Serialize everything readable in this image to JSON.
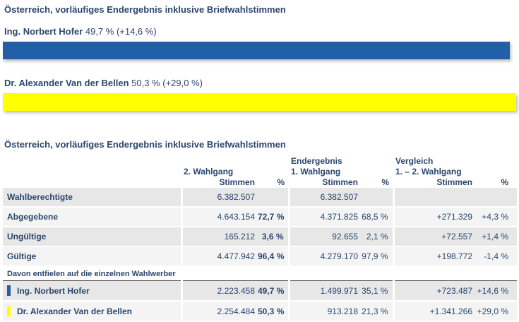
{
  "page": {
    "background": "#ffffff",
    "text_color": "#2d466e"
  },
  "chart": {
    "title": "Österreich, vorläufiges Endergebnis inklusive Briefwahlstimmen",
    "max_percent": 50.3,
    "bars": [
      {
        "name": "Ing. Norbert Hofer",
        "value_label": "49,7 % (+14,6 %)",
        "percent": 49.7,
        "color": "#2160a8"
      },
      {
        "name": "Dr. Alexander Van der Bellen",
        "value_label": "50,3 % (+29,0 %)",
        "percent": 50.3,
        "color": "#ffff00"
      }
    ]
  },
  "table": {
    "title": "Österreich, vorläufiges Endergebnis inklusive Briefwahlstimmen",
    "header": {
      "group1_line2": "2. Wahlgang",
      "group2_line1": "Endergebnis",
      "group2_line2": "1. Wahlgang",
      "group3_line1": "Vergleich",
      "group3_line2": "1. – 2. Wahlgang",
      "stimmen": "Stimmen",
      "percent": "%"
    },
    "rows": [
      {
        "label": "Wahlberechtigte",
        "cells": [
          "6.382.507",
          "",
          "6.382.507",
          "",
          "",
          ""
        ]
      },
      {
        "label": "Abgegebene",
        "cells": [
          "4.643.154",
          "72,7 %",
          "4.371.825",
          "68,5 %",
          "+271.329",
          "+4,3 %"
        ]
      },
      {
        "label": "Ungültige",
        "cells": [
          "165.212",
          "3,6 %",
          "92.655",
          "2,1 %",
          "+72.557",
          "+1,4 %"
        ]
      },
      {
        "label": "Gültige",
        "cells": [
          "4.477.942",
          "96,4 %",
          "4.279.170",
          "97,9 %",
          "+198.772",
          "-1,4 %"
        ]
      }
    ],
    "section_label": "Davon entfielen auf die einzelnen Wahlwerber",
    "candidates": [
      {
        "label": "Ing. Norbert Hofer",
        "swatch": "#2160a8",
        "cells": [
          "2.223.458",
          "49,7 %",
          "1.499.971",
          "35,1 %",
          "+723.487",
          "+14,6 %"
        ]
      },
      {
        "label": "Dr. Alexander Van der Bellen",
        "swatch": "#ffff00",
        "cells": [
          "2.254.484",
          "50,3 %",
          "913.218",
          "21,3 %",
          "+1.341.266",
          "+29,0 %"
        ]
      }
    ]
  },
  "chart_data": [
    {
      "type": "bar",
      "orientation": "horizontal",
      "title": "Österreich, vorläufiges Endergebnis inklusive Briefwahlstimmen",
      "categories": [
        "Ing. Norbert Hofer",
        "Dr. Alexander Van der Bellen"
      ],
      "values": [
        49.7,
        50.3
      ],
      "value_labels": [
        "49,7 % (+14,6 %)",
        "50,3 % (+29,0 %)"
      ],
      "deltas": [
        "+14,6 %",
        "+29,0 %"
      ],
      "colors": [
        "#2160a8",
        "#ffff00"
      ],
      "xlim": [
        0,
        50.3
      ],
      "grid": false,
      "legend": "none"
    },
    {
      "type": "table",
      "title": "Österreich, vorläufiges Endergebnis inklusive Briefwahlstimmen",
      "columns": [
        "",
        "2. Wahlgang Stimmen",
        "2. Wahlgang %",
        "Endergebnis 1. Wahlgang Stimmen",
        "Endergebnis 1. Wahlgang %",
        "Vergleich 1. – 2. Wahlgang Stimmen",
        "Vergleich 1. – 2. Wahlgang %"
      ],
      "rows": [
        [
          "Wahlberechtigte",
          "6.382.507",
          "",
          "6.382.507",
          "",
          "",
          ""
        ],
        [
          "Abgegebene",
          "4.643.154",
          "72,7 %",
          "4.371.825",
          "68,5 %",
          "+271.329",
          "+4,3 %"
        ],
        [
          "Ungültige",
          "165.212",
          "3,6 %",
          "92.655",
          "2,1 %",
          "+72.557",
          "+1,4 %"
        ],
        [
          "Gültige",
          "4.477.942",
          "96,4 %",
          "4.279.170",
          "97,9 %",
          "+198.772",
          "-1,4 %"
        ],
        [
          "Ing. Norbert Hofer",
          "2.223.458",
          "49,7 %",
          "1.499.971",
          "35,1 %",
          "+723.487",
          "+14,6 %"
        ],
        [
          "Dr. Alexander Van der Bellen",
          "2.254.484",
          "50,3 %",
          "913.218",
          "21,3 %",
          "+1.341.266",
          "+29,0 %"
        ]
      ],
      "section_row_label": "Davon entfielen auf die einzelnen Wahlwerber"
    }
  ]
}
